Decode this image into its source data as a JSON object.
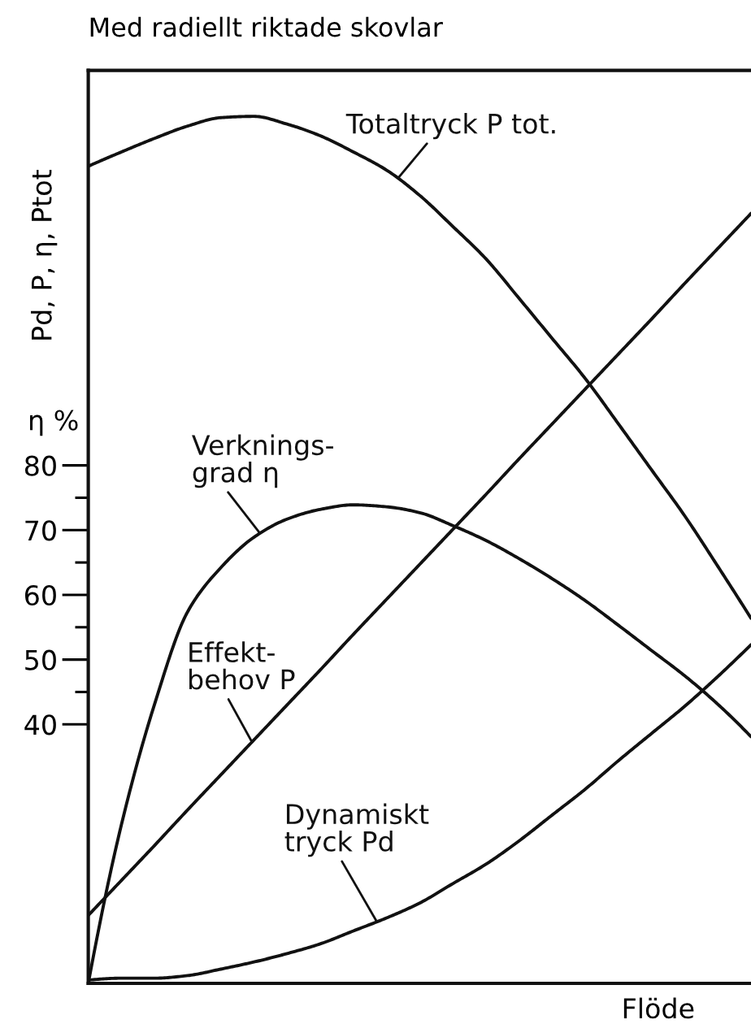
{
  "chart_data": {
    "type": "line",
    "title": "Med radiellt riktade skovlar",
    "xlabel": "Flöde",
    "ylabel": "Pd, P, η, Ptot",
    "annotations": [
      "η %"
    ],
    "categories": [
      null,
      null,
      null,
      null,
      null,
      null,
      null,
      null,
      null,
      null,
      null,
      null,
      null,
      null,
      null,
      null,
      null,
      null,
      null,
      null,
      null
    ],
    "series": [
      {
        "name": "Totaltryck P tot.",
        "color": "#111111",
        "values": [
          126.2,
          128.4,
          130.5,
          132.4,
          133.7,
          133.9,
          132.7,
          130.9,
          128.4,
          125.6,
          121.7,
          116.9,
          111.9,
          105.8,
          99.6,
          93.4,
          86.4,
          79.3,
          72.2,
          64.4,
          56.4
        ]
      },
      {
        "name": "Verknings-\ngrad η",
        "color": "#111111",
        "values": [
          0,
          24.5,
          43.1,
          57.4,
          64.2,
          68.9,
          71.7,
          73.2,
          73.9,
          73.6,
          72.7,
          70.7,
          68.4,
          65.6,
          62.5,
          59.1,
          55.3,
          51.4,
          47.5,
          43.1,
          38.1
        ]
      },
      {
        "name": "Effekt-\nbehov P",
        "color": "#111111",
        "values": [
          10.5,
          15.9,
          21.3,
          26.8,
          32.2,
          37.6,
          43.0,
          48.4,
          53.9,
          59.3,
          64.7,
          70.1,
          75.5,
          81.0,
          86.4,
          91.8,
          97.2,
          102.6,
          108.1,
          113.5,
          118.9
        ]
      },
      {
        "name": "Dynamiskt\ntryck Pd",
        "color": "#111111",
        "values": [
          0.5,
          0.8,
          0.8,
          1.2,
          2.2,
          3.3,
          4.6,
          6.1,
          8.1,
          10.1,
          12.4,
          15.4,
          18.4,
          22.0,
          26.0,
          30.0,
          34.4,
          38.6,
          42.8,
          47.4,
          52.3
        ]
      }
    ],
    "ylim": [
      0,
      141
    ],
    "yticks": [
      40,
      {
        "value": 45,
        "label": null
      },
      50,
      {
        "value": 55,
        "label": null
      },
      60,
      {
        "value": 65,
        "label": null
      },
      70,
      {
        "value": 75,
        "label": null
      },
      80
    ],
    "tick_labels": "y"
  }
}
